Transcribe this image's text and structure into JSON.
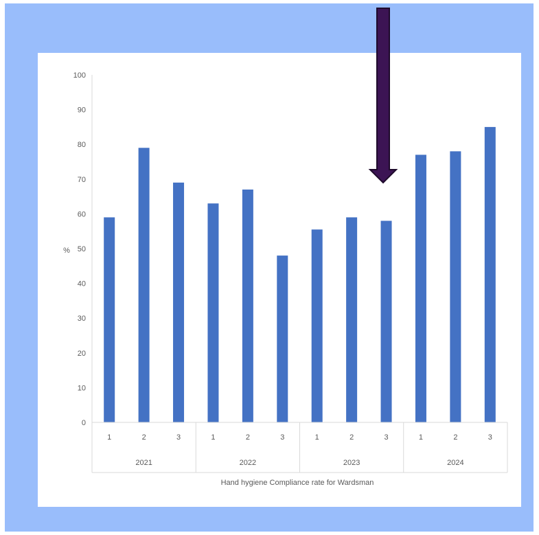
{
  "chart_data": {
    "type": "bar",
    "title": "",
    "xlabel": "Hand hygiene Compliance rate for Wardsman",
    "ylabel": "%",
    "ylim": [
      0,
      100
    ],
    "yticks": [
      "0",
      "10",
      "20",
      "30",
      "40",
      "50",
      "60",
      "70",
      "80",
      "90",
      "100"
    ],
    "groups": [
      {
        "label": "2021",
        "categories": [
          "1",
          "2",
          "3"
        ],
        "values": [
          59,
          79,
          69
        ]
      },
      {
        "label": "2022",
        "categories": [
          "1",
          "2",
          "3"
        ],
        "values": [
          63,
          67,
          48
        ]
      },
      {
        "label": "2023",
        "categories": [
          "1",
          "2",
          "3"
        ],
        "values": [
          55.5,
          59,
          58
        ]
      },
      {
        "label": "2024",
        "categories": [
          "1",
          "2",
          "3"
        ],
        "values": [
          77,
          78,
          85
        ]
      }
    ],
    "bar_color": "#4472c4",
    "grid": false,
    "annotation": {
      "type": "arrow",
      "color": "#3c1454",
      "points_to": "2023 period 3"
    }
  }
}
